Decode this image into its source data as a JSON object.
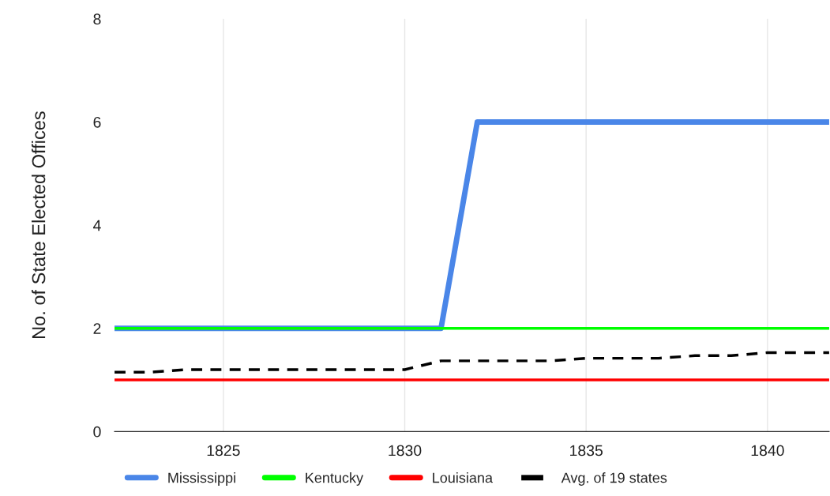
{
  "chart_data": {
    "type": "line",
    "ylabel": "No. of State Elected Offices",
    "x": [
      1822,
      1823,
      1824,
      1825,
      1826,
      1827,
      1828,
      1829,
      1830,
      1831,
      1832,
      1833,
      1834,
      1835,
      1836,
      1837,
      1838,
      1839,
      1840,
      1841,
      1841.7
    ],
    "series": [
      {
        "name": "Mississippi",
        "color": "#4a86e8",
        "line_style": "solid",
        "values": [
          2,
          2,
          2,
          2,
          2,
          2,
          2,
          2,
          2,
          2,
          6,
          6,
          6,
          6,
          6,
          6,
          6,
          6,
          6,
          6,
          6
        ]
      },
      {
        "name": "Kentucky",
        "color": "#00ff00",
        "line_style": "solid",
        "values": [
          2,
          2,
          2,
          2,
          2,
          2,
          2,
          2,
          2,
          2,
          2,
          2,
          2,
          2,
          2,
          2,
          2,
          2,
          2,
          2,
          2
        ]
      },
      {
        "name": "Louisiana",
        "color": "#ff0000",
        "line_style": "solid",
        "values": [
          1,
          1,
          1,
          1,
          1,
          1,
          1,
          1,
          1,
          1,
          1,
          1,
          1,
          1,
          1,
          1,
          1,
          1,
          1,
          1,
          1
        ]
      },
      {
        "name": "Avg. of 19 states",
        "color": "#000000",
        "line_style": "dashed",
        "values": [
          1.15,
          1.15,
          1.2,
          1.2,
          1.2,
          1.2,
          1.2,
          1.2,
          1.2,
          1.37,
          1.37,
          1.37,
          1.37,
          1.42,
          1.42,
          1.42,
          1.47,
          1.47,
          1.53,
          1.53,
          1.53
        ]
      }
    ],
    "xlim": [
      1822,
      1841.7
    ],
    "xticks": [
      1825,
      1830,
      1835,
      1840
    ],
    "ylim": [
      0,
      8
    ],
    "yticks": [
      0,
      2,
      4,
      6,
      8
    ],
    "grid": "x",
    "legend": "bottom",
    "marker": "none"
  }
}
